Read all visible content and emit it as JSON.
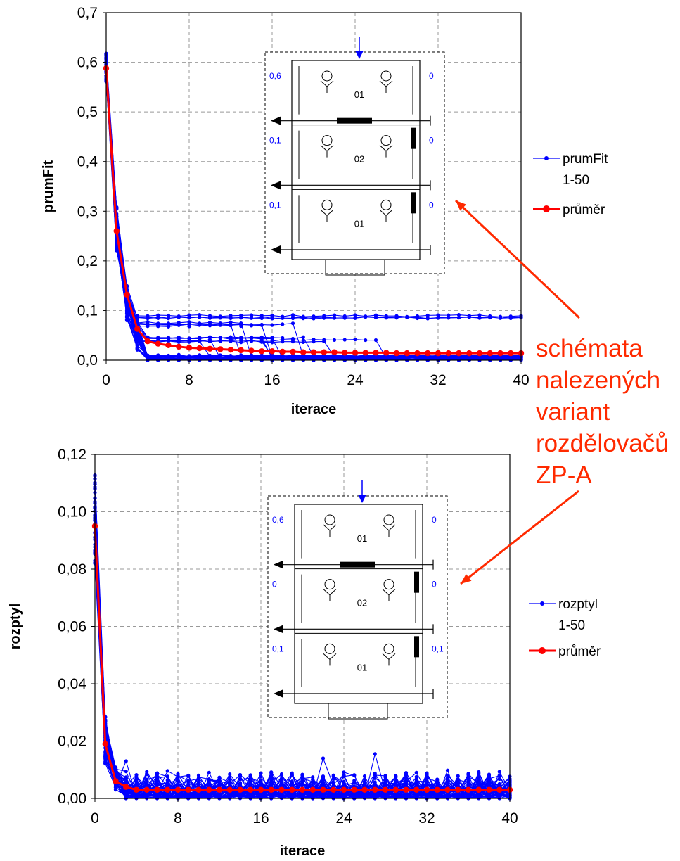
{
  "annotation": {
    "lines": [
      "schémata",
      "nalezených",
      "variant",
      "rozdělovačů",
      "ZP-A"
    ],
    "color": "#ff2a00"
  },
  "colors": {
    "runs": "#0000ff",
    "mean": "#ff0000",
    "arrow": "#ff2a00",
    "diagram_blue": "#0000ff"
  },
  "chart_data": [
    {
      "type": "line",
      "xlabel": "iterace",
      "ylabel": "prumFit",
      "xlim": [
        0,
        40
      ],
      "ylim": [
        0,
        0.7
      ],
      "xticks": [
        0,
        8,
        16,
        24,
        32,
        40
      ],
      "xtick_labels": [
        "0",
        "8",
        "16",
        "24",
        "32",
        "40"
      ],
      "yticks": [
        0,
        0.1,
        0.2,
        0.3,
        0.4,
        0.5,
        0.6,
        0.7
      ],
      "ytick_labels": [
        "0,0",
        "0,1",
        "0,2",
        "0,3",
        "0,4",
        "0,5",
        "0,6",
        "0,7"
      ],
      "grid": true,
      "legend_position": "right",
      "legend": [
        {
          "label_lines": [
            "prumFit",
            "1-50"
          ],
          "color": "#0000ff",
          "style": "thin"
        },
        {
          "label_lines": [
            "průměr"
          ],
          "color": "#ff0000",
          "style": "thick"
        }
      ],
      "runs_count": 50,
      "runs_profile": {
        "start_range": [
          0.56,
          0.62
        ],
        "plateau_groups": [
          {
            "count": 3,
            "level": 0.088
          },
          {
            "count": 4,
            "level": 0.07,
            "drop_range": [
              10,
              24
            ]
          },
          {
            "count": 8,
            "level": 0.04,
            "drop_range": [
              6,
              28
            ]
          },
          {
            "count": 35,
            "level": 0.004
          }
        ]
      },
      "series": [
        {
          "name": "průměr",
          "x": [
            0,
            1,
            2,
            3,
            4,
            5,
            6,
            7,
            8,
            9,
            10,
            11,
            12,
            13,
            14,
            15,
            16,
            17,
            18,
            19,
            20,
            21,
            22,
            23,
            24,
            25,
            26,
            27,
            28,
            29,
            30,
            31,
            32,
            33,
            34,
            35,
            36,
            37,
            38,
            39,
            40
          ],
          "values": [
            0.588,
            0.26,
            0.132,
            0.063,
            0.038,
            0.033,
            0.03,
            0.027,
            0.025,
            0.024,
            0.023,
            0.022,
            0.021,
            0.02,
            0.019,
            0.018,
            0.018,
            0.017,
            0.017,
            0.016,
            0.016,
            0.016,
            0.016,
            0.015,
            0.015,
            0.015,
            0.015,
            0.015,
            0.014,
            0.014,
            0.014,
            0.014,
            0.014,
            0.014,
            0.014,
            0.014,
            0.014,
            0.014,
            0.014,
            0.014,
            0.014
          ]
        }
      ],
      "inset": {
        "labels_left": [
          "0,6",
          "0,1",
          "0,1"
        ],
        "labels_right": [
          "0",
          "0",
          "0"
        ],
        "section_labels": [
          "01",
          "02",
          "01"
        ]
      }
    },
    {
      "type": "line",
      "xlabel": "iterace",
      "ylabel": "rozptyl",
      "xlim": [
        0,
        40
      ],
      "ylim": [
        0,
        0.12
      ],
      "xticks": [
        0,
        8,
        16,
        24,
        32,
        40
      ],
      "xtick_labels": [
        "0",
        "8",
        "16",
        "24",
        "32",
        "40"
      ],
      "yticks": [
        0,
        0.02,
        0.04,
        0.06,
        0.08,
        0.1,
        0.12
      ],
      "ytick_labels": [
        "0,00",
        "0,02",
        "0,04",
        "0,06",
        "0,08",
        "0,10",
        "0,12"
      ],
      "grid": true,
      "legend_position": "right",
      "legend": [
        {
          "label_lines": [
            "rozptyl",
            "1-50"
          ],
          "color": "#0000ff",
          "style": "thin"
        },
        {
          "label_lines": [
            "průměr"
          ],
          "color": "#ff0000",
          "style": "thick"
        }
      ],
      "runs_count": 50,
      "runs_profile": {
        "start_range": [
          0.08,
          0.114
        ],
        "plateau_max": 0.0155,
        "plateau_typical": 0.004
      },
      "series": [
        {
          "name": "průměr",
          "x": [
            0,
            1,
            2,
            3,
            4,
            5,
            6,
            7,
            8,
            9,
            10,
            11,
            12,
            13,
            14,
            15,
            16,
            17,
            18,
            19,
            20,
            21,
            22,
            23,
            24,
            25,
            26,
            27,
            28,
            29,
            30,
            31,
            32,
            33,
            34,
            35,
            36,
            37,
            38,
            39,
            40
          ],
          "values": [
            0.095,
            0.019,
            0.006,
            0.004,
            0.003,
            0.003,
            0.003,
            0.003,
            0.003,
            0.003,
            0.003,
            0.003,
            0.003,
            0.003,
            0.003,
            0.003,
            0.003,
            0.003,
            0.003,
            0.003,
            0.003,
            0.003,
            0.003,
            0.003,
            0.003,
            0.003,
            0.003,
            0.003,
            0.003,
            0.003,
            0.003,
            0.003,
            0.003,
            0.003,
            0.003,
            0.003,
            0.003,
            0.003,
            0.003,
            0.003,
            0.003
          ]
        }
      ],
      "inset": {
        "labels_left": [
          "0,6",
          "0",
          "0,1"
        ],
        "labels_right": [
          "0",
          "0",
          "0,1"
        ],
        "section_labels": [
          "01",
          "02",
          "01"
        ]
      }
    }
  ]
}
